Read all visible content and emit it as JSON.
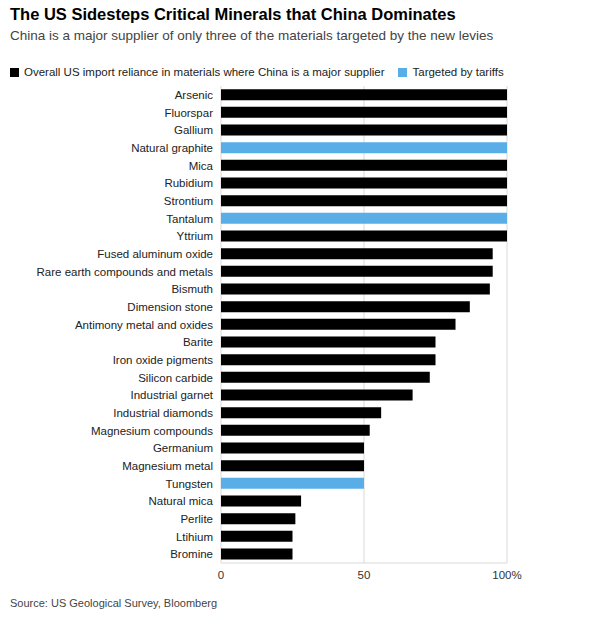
{
  "chart_data": {
    "type": "bar",
    "orientation": "horizontal",
    "stacked": true,
    "title": "The US Sidesteps Critical Minerals that China Dominates",
    "subtitle": "China is a major supplier of only three of the materials targeted by the new levies",
    "source": "Source: US Geological Survey, Bloomberg",
    "categories": [
      "Arsenic",
      "Fluorspar",
      "Gallium",
      "Natural graphite",
      "Mica",
      "Rubidium",
      "Strontium",
      "Tantalum",
      "Yttrium",
      "Fused aluminum oxide",
      "Rare earth compounds and metals",
      "Bismuth",
      "Dimension stone",
      "Antimony metal and oxides",
      "Barite",
      "Iron oxide pigments",
      "Silicon carbide",
      "Industrial garnet",
      "Industrial diamonds",
      "Magnesium compounds",
      "Germanium",
      "Magnesium metal",
      "Tungsten",
      "Natural mica",
      "Perlite",
      "Ltihium",
      "Bromine"
    ],
    "series": [
      {
        "name": "Overall US import reliance in materials where China is a major supplier",
        "color": "#000000",
        "values": [
          100,
          100,
          100,
          null,
          100,
          100,
          100,
          null,
          100,
          95,
          95,
          94,
          87,
          82,
          75,
          75,
          73,
          67,
          56,
          52,
          50,
          50,
          null,
          28,
          26,
          25,
          25
        ]
      },
      {
        "name": "Targeted by tariffs",
        "color": "#5aaee8",
        "values": [
          null,
          null,
          null,
          100,
          null,
          null,
          null,
          100,
          null,
          null,
          null,
          null,
          null,
          null,
          null,
          null,
          null,
          null,
          null,
          null,
          null,
          null,
          50,
          null,
          null,
          null,
          null
        ]
      }
    ],
    "xlim": [
      0,
      100
    ],
    "xticks": [
      0,
      50,
      {
        "value": 100,
        "label": "100%"
      }
    ],
    "grid": true,
    "legend": "top-left"
  }
}
